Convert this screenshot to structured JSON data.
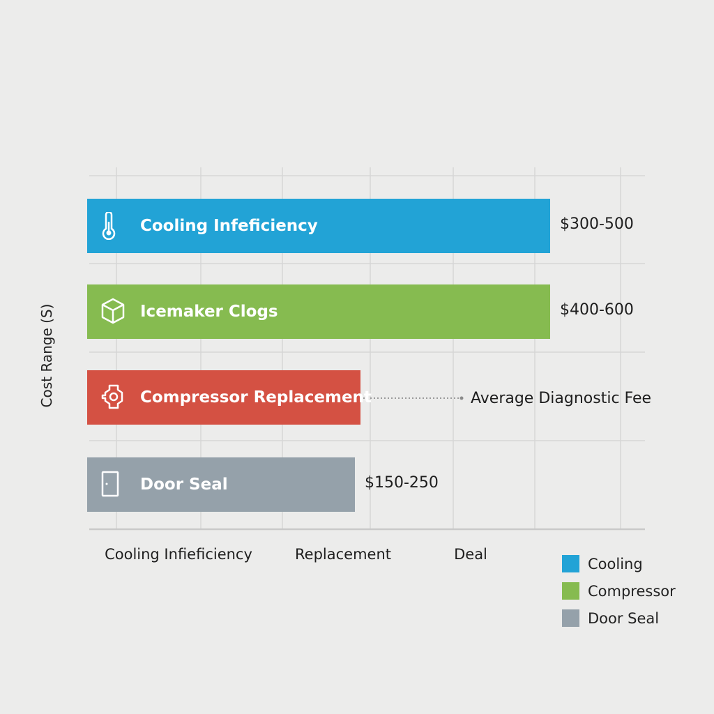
{
  "chart_data": {
    "type": "bar",
    "orientation": "horizontal",
    "ylabel": "Cost Range (S)",
    "xlim": [
      0,
      1
    ],
    "grid": true,
    "categories": [
      "Cooling Infeficiency",
      "Icemaker Clogs",
      "Compressor Replacement",
      "Door Seal"
    ],
    "values": [
      0.83,
      0.83,
      0.49,
      0.48
    ],
    "value_labels": [
      "$300-500",
      "$400-600",
      "",
      "$150-250"
    ],
    "colors": [
      "#22a3d6",
      "#86bb50",
      "#d45143",
      "#95a1aa"
    ],
    "icons": [
      "thermometer-icon",
      "cube-icon",
      "gear-icon",
      "door-icon"
    ],
    "x_tick_labels": [
      "Cooling Infieficiency",
      "Replacement",
      "Deal"
    ],
    "annotation": {
      "text": "Average Diagnostic Fee",
      "target": "Compressor Replacement"
    },
    "legend": {
      "placement": "bottom-right",
      "entries": [
        {
          "name": "Cooling",
          "color": "#22a3d6"
        },
        {
          "name": "Compressor",
          "color": "#86bb50"
        },
        {
          "name": "Door Seal",
          "color": "#95a1aa"
        }
      ]
    }
  }
}
